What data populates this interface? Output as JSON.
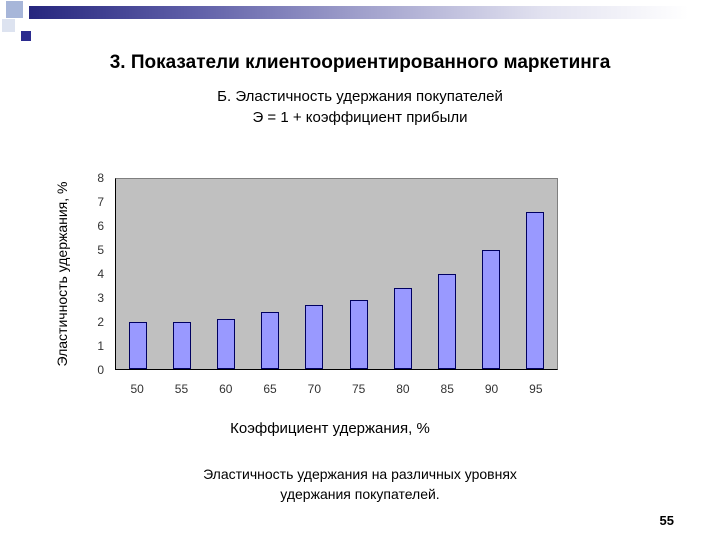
{
  "slide": {
    "title": "3. Показатели клиентоориентированного маркетинга",
    "subtitle_line1": "Б. Эластичность удержания покупателей",
    "subtitle_line2": "Э = 1 + коэффициент прибыли",
    "caption_line1": "Эластичность удержания на различных уровнях",
    "caption_line2": "удержания покупателей.",
    "page_number": "55"
  },
  "chart_data": {
    "type": "bar",
    "title": "",
    "categories": [
      "50",
      "55",
      "60",
      "65",
      "70",
      "75",
      "80",
      "85",
      "90",
      "95"
    ],
    "values": [
      2.0,
      2.0,
      2.1,
      2.4,
      2.7,
      2.9,
      3.4,
      4.0,
      5.0,
      6.6
    ],
    "xlabel": "Коэффициент удержания, %",
    "ylabel": "Эластичность удержания, %",
    "ylim": [
      0,
      8
    ],
    "yticks": [
      0,
      1,
      2,
      3,
      4,
      5,
      6,
      7,
      8
    ],
    "grid": false,
    "legend": false,
    "bar_color": "#9999ff",
    "bar_border_color": "#000060",
    "plot_background": "#c0c0c0"
  }
}
